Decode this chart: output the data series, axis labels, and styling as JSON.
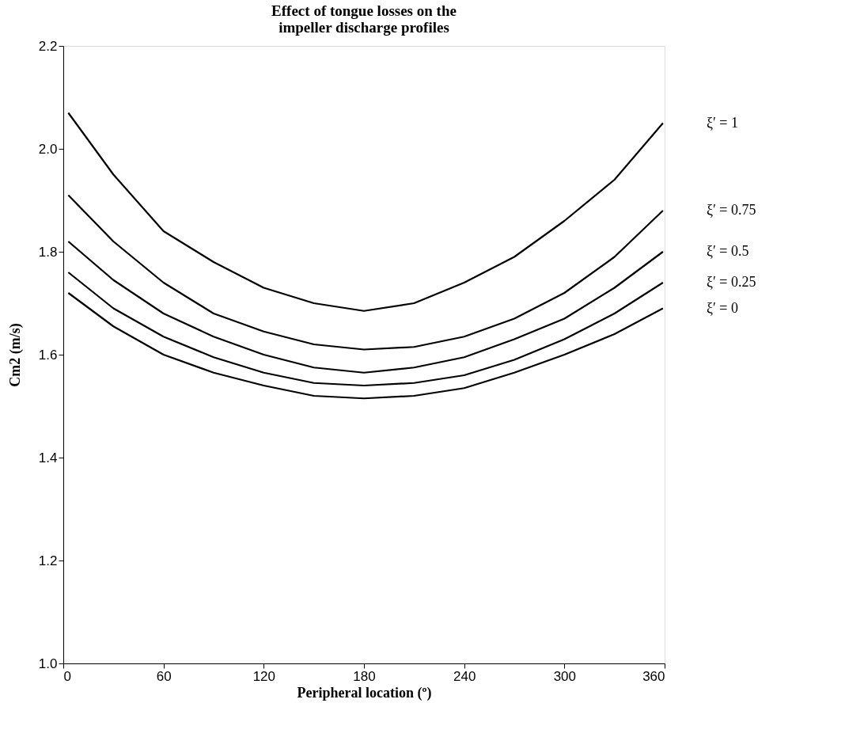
{
  "chart_data": {
    "type": "line",
    "title": [
      "Effect of tongue losses on the",
      "impeller discharge profiles"
    ],
    "xlabel": "Peripheral location (º)",
    "ylabel": "Cm2    (m/s)",
    "x": [
      3,
      30,
      60,
      90,
      120,
      150,
      180,
      210,
      240,
      270,
      300,
      330,
      359
    ],
    "series": [
      {
        "name": "ξ′ = 1",
        "color": "#000000",
        "values": [
          2.07,
          1.95,
          1.84,
          1.78,
          1.73,
          1.7,
          1.685,
          1.7,
          1.74,
          1.79,
          1.86,
          1.94,
          2.05
        ]
      },
      {
        "name": "ξ′ = 0.75",
        "color": "#000000",
        "values": [
          1.91,
          1.82,
          1.74,
          1.68,
          1.645,
          1.62,
          1.61,
          1.615,
          1.635,
          1.67,
          1.72,
          1.79,
          1.88
        ]
      },
      {
        "name": "ξ′ = 0.5",
        "color": "#000000",
        "values": [
          1.82,
          1.745,
          1.68,
          1.635,
          1.6,
          1.575,
          1.565,
          1.575,
          1.595,
          1.63,
          1.67,
          1.73,
          1.8
        ]
      },
      {
        "name": "ξ′ = 0.25",
        "color": "#000000",
        "values": [
          1.76,
          1.69,
          1.635,
          1.595,
          1.565,
          1.545,
          1.54,
          1.545,
          1.56,
          1.59,
          1.63,
          1.68,
          1.74
        ]
      },
      {
        "name": "ξ′ = 0",
        "color": "#000000",
        "values": [
          1.72,
          1.655,
          1.6,
          1.565,
          1.54,
          1.52,
          1.515,
          1.52,
          1.535,
          1.565,
          1.6,
          1.64,
          1.69
        ]
      }
    ],
    "xlim": [
      0,
      360
    ],
    "xticks": [
      0,
      60,
      120,
      180,
      240,
      300,
      360
    ],
    "ylim": [
      1.0,
      2.2
    ],
    "yticks": [
      {
        "value": 1.0,
        "label": "1.0"
      },
      {
        "value": 1.2,
        "label": "1.2"
      },
      {
        "value": 1.4,
        "label": "1.4"
      },
      {
        "value": 1.6,
        "label": "1.6"
      },
      {
        "value": 1.8,
        "label": "1.8"
      },
      {
        "value": 2.0,
        "label": "2.0"
      },
      {
        "value": 2.2,
        "label": "2.2"
      }
    ],
    "grid": false,
    "legend": false,
    "marker": "none",
    "line_style": "solid"
  }
}
